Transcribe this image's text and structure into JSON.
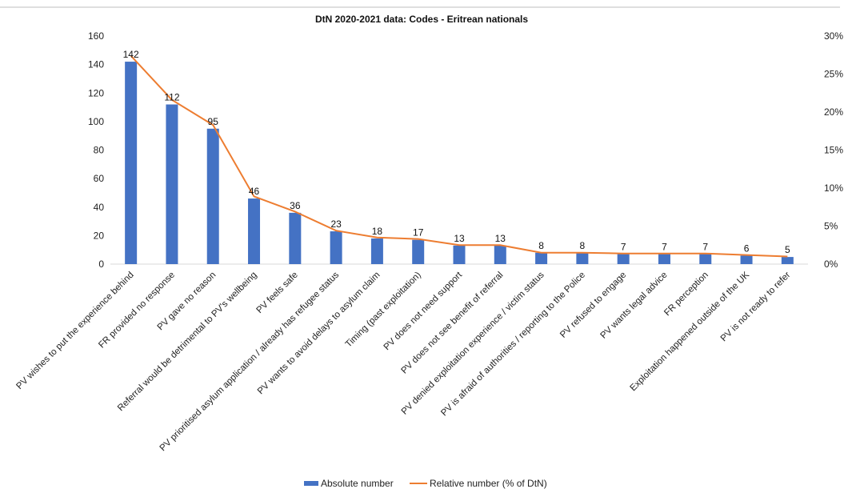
{
  "chart_data": {
    "type": "bar",
    "title": "DtN 2020-2021 data: Codes - Eritrean nationals",
    "categories": [
      "PV wishes to put the experience behind",
      "FR provided no response",
      "PV gave no reason",
      "Referral would be detrimental to PV's wellbeing",
      "PV feels safe",
      "PV prioritised asylum application / already has refugee status",
      "PV wants to avoid delays to asylum claim",
      "Timing (past exploitation)",
      "PV does not need support",
      "PV does not see benefit of referral",
      "PV denied exploitation experience / victim status",
      "PV is afraid of authorities / reporting to the Police",
      "PV refused to engage",
      "PV wants legal advice",
      "FR perception",
      "Exploitation happened outside of the UK",
      "PV is not ready to refer"
    ],
    "series": [
      {
        "name": "Absolute number",
        "type": "bar",
        "axis": "left",
        "color": "#4472c4",
        "values": [
          142,
          112,
          95,
          46,
          36,
          23,
          18,
          17,
          13,
          13,
          8,
          8,
          7,
          7,
          7,
          6,
          5
        ]
      },
      {
        "name": "Relative number (% of DtN)",
        "type": "line",
        "axis": "right",
        "color": "#ed7d31",
        "values": [
          27.4,
          21.6,
          18.3,
          8.9,
          6.9,
          4.4,
          3.5,
          3.3,
          2.5,
          2.5,
          1.5,
          1.5,
          1.4,
          1.4,
          1.4,
          1.2,
          1.0
        ]
      }
    ],
    "y_left": {
      "lim": [
        0,
        160
      ],
      "ticks": [
        0,
        20,
        40,
        60,
        80,
        100,
        120,
        140,
        160
      ]
    },
    "y_right": {
      "lim": [
        0,
        30
      ],
      "ticks": [
        "0%",
        "5%",
        "10%",
        "15%",
        "20%",
        "25%",
        "30%"
      ]
    },
    "data_labels": [
      "142",
      "112",
      "95",
      "46",
      "36",
      "23",
      "18",
      "17",
      "13",
      "13",
      "8",
      "8",
      "7",
      "7",
      "7",
      "6",
      "5"
    ],
    "legend_position": "bottom",
    "grid": false
  }
}
